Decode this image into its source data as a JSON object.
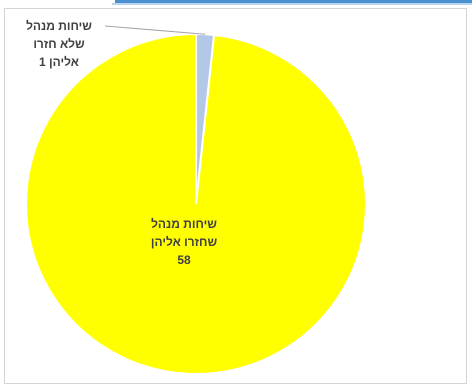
{
  "chart_data": {
    "type": "pie",
    "title": "",
    "slices": [
      {
        "label_lines": [
          "שיחות מנהל",
          "שלא חזרו",
          "אליהן"
        ],
        "value": 1,
        "color": "#b4c7e7"
      },
      {
        "label_lines": [
          "שיחות מנהל",
          "שחזרו אליהן"
        ],
        "value": 58,
        "color": "#ffff00"
      }
    ],
    "legend": "none"
  }
}
